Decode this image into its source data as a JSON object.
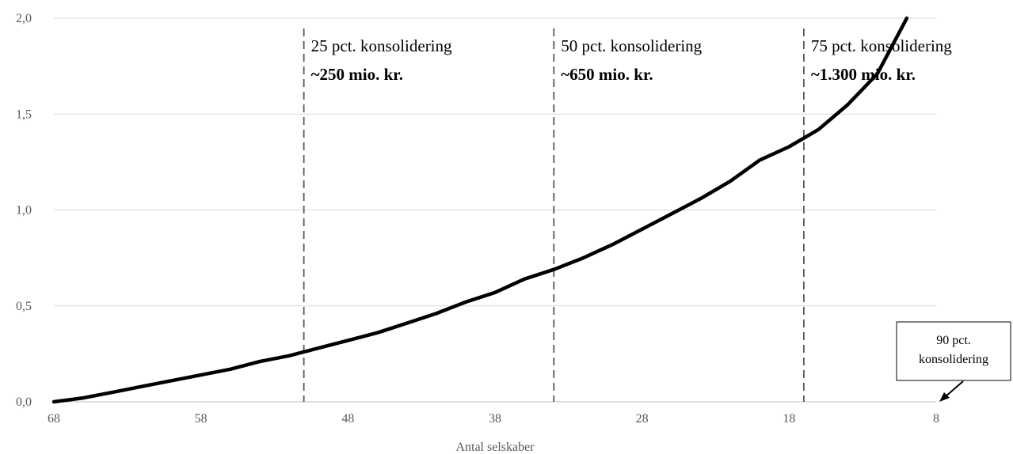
{
  "chart_data": {
    "type": "line",
    "title": "",
    "xlabel": "Antal selskaber",
    "ylabel": "",
    "x_reversed": true,
    "xlim": [
      68,
      8
    ],
    "ylim": [
      0,
      2.0
    ],
    "x_ticks": [
      "68",
      "58",
      "48",
      "38",
      "28",
      "18",
      "8"
    ],
    "y_ticks": [
      "0,0",
      "0,5",
      "1,0",
      "1,5",
      "2,0"
    ],
    "grid": "horizontal",
    "series": [
      {
        "x": [
          68,
          66,
          64,
          62,
          60,
          58,
          56,
          54,
          52,
          51,
          50,
          48,
          46,
          44,
          42,
          40,
          38,
          36,
          34,
          32,
          30,
          28,
          26,
          24,
          22,
          20,
          18,
          16,
          14,
          12,
          10
        ],
        "y": [
          0.0,
          0.02,
          0.05,
          0.08,
          0.11,
          0.14,
          0.17,
          0.21,
          0.24,
          0.26,
          0.28,
          0.32,
          0.36,
          0.41,
          0.46,
          0.52,
          0.57,
          0.64,
          0.69,
          0.75,
          0.82,
          0.9,
          0.98,
          1.06,
          1.15,
          1.26,
          1.33,
          1.42,
          1.55,
          1.71,
          2.0
        ]
      }
    ],
    "markers": [
      {
        "x": 51,
        "label": "25 pct. konsolidering",
        "value": "~250 mio. kr."
      },
      {
        "x": 34,
        "label": "50 pct. konsolidering",
        "value": "~650 mio. kr."
      },
      {
        "x": 17,
        "label": "75 pct. konsolidering",
        "value": "~1.300 mio. kr."
      }
    ],
    "callout": {
      "lines": [
        "90 pct.",
        "konsolidering"
      ]
    }
  }
}
